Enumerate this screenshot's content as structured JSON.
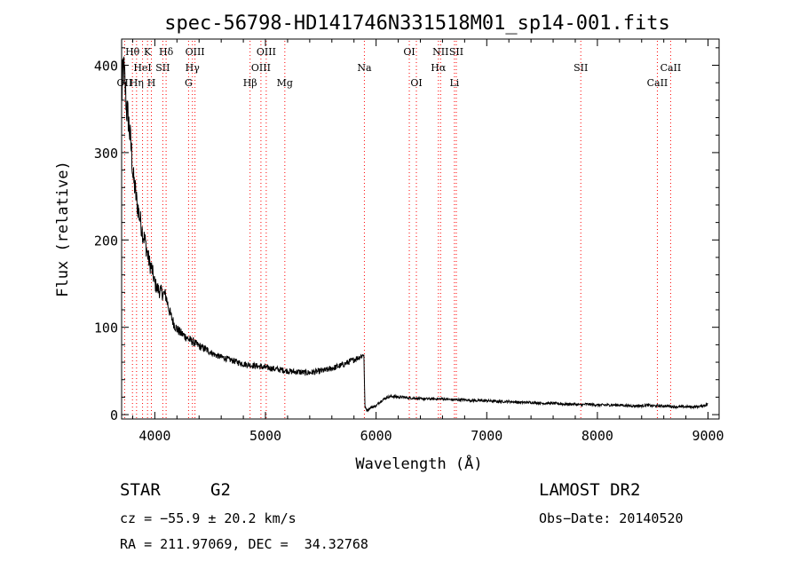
{
  "chart_data": {
    "type": "line",
    "title": "spec-56798-HD141746N331518M01_sp14-001.fits",
    "xlabel": "Wavelength (Å)",
    "ylabel": "Flux (relative)",
    "xlim": [
      3700,
      9100
    ],
    "ylim": [
      -5,
      430
    ],
    "xticks": [
      4000,
      5000,
      6000,
      7000,
      8000,
      9000
    ],
    "yticks": [
      0,
      100,
      200,
      300,
      400
    ],
    "grid": false,
    "line_color": "#000000",
    "marker_color": "#ff0000",
    "series": [
      {
        "x": [
          3700,
          3715,
          3730,
          3745,
          3760,
          3775,
          3790,
          3805,
          3820,
          3835,
          3850,
          3865,
          3880,
          3895,
          3910,
          3925,
          3940,
          3955,
          3970,
          3985,
          4000,
          4020,
          4040,
          4060,
          4080,
          4100,
          4120,
          4140,
          4160,
          4180,
          4200,
          4230,
          4260,
          4290,
          4320,
          4350,
          4380,
          4410,
          4440,
          4470,
          4500,
          4550,
          4600,
          4650,
          4700,
          4750,
          4800,
          4850,
          4900,
          4950,
          5000,
          5050,
          5100,
          5150,
          5200,
          5250,
          5300,
          5350,
          5400,
          5450,
          5500,
          5550,
          5600,
          5650,
          5700,
          5750,
          5800,
          5850,
          5880,
          5890,
          5895,
          5900,
          5920,
          5950,
          6000,
          6030,
          6060,
          6100,
          6150,
          6200,
          6250,
          6300,
          6350,
          6400,
          6500,
          6600,
          6700,
          6800,
          6900,
          7000,
          7100,
          7200,
          7300,
          7400,
          7500,
          7600,
          7700,
          7800,
          7850,
          7900,
          8000,
          8100,
          8200,
          8300,
          8400,
          8450,
          8500,
          8600,
          8700,
          8800,
          8900,
          8950,
          9000
        ],
        "y": [
          360,
          400,
          380,
          350,
          340,
          320,
          300,
          270,
          260,
          245,
          235,
          225,
          215,
          205,
          200,
          190,
          180,
          172,
          168,
          160,
          150,
          145,
          142,
          140,
          138,
          136,
          125,
          115,
          108,
          102,
          98,
          94,
          91,
          88,
          85,
          83,
          80,
          78,
          76,
          74,
          72,
          68,
          66,
          64,
          62,
          60,
          58,
          57,
          56,
          55,
          54,
          53,
          52,
          51,
          50,
          49,
          49,
          48,
          48,
          49,
          50,
          51,
          53,
          55,
          57,
          60,
          63,
          66,
          68,
          70,
          30,
          8,
          5,
          8,
          10,
          14,
          17,
          20,
          21,
          20,
          20,
          19,
          19,
          18,
          18,
          18,
          17,
          17,
          16,
          16,
          15,
          15,
          14,
          14,
          13,
          13,
          12,
          12,
          11,
          12,
          11,
          11,
          11,
          10,
          10,
          11,
          10,
          10,
          9,
          9,
          9,
          10,
          12
        ]
      }
    ],
    "lines": [
      {
        "label": "OII",
        "wave": 3727,
        "row": 2
      },
      {
        "label": "Hθ",
        "wave": 3798,
        "row": 0
      },
      {
        "label": "Hη",
        "wave": 3835,
        "row": 2
      },
      {
        "label": "HeI",
        "wave": 3889,
        "row": 1
      },
      {
        "label": "K",
        "wave": 3934,
        "row": 0
      },
      {
        "label": "SII",
        "wave": 4072,
        "row": 1
      },
      {
        "label": "H",
        "wave": 3969,
        "row": 2
      },
      {
        "label": "Hδ",
        "wave": 4102,
        "row": 0
      },
      {
        "label": "OIII",
        "wave": 4363,
        "row": 0
      },
      {
        "label": "Hγ",
        "wave": 4340,
        "row": 1
      },
      {
        "label": "G",
        "wave": 4305,
        "row": 2
      },
      {
        "label": "OIII",
        "wave": 5007,
        "row": 0
      },
      {
        "label": "OIII",
        "wave": 4959,
        "row": 1
      },
      {
        "label": "Hβ",
        "wave": 4861,
        "row": 2
      },
      {
        "label": "Mg",
        "wave": 5175,
        "row": 2
      },
      {
        "label": "Na",
        "wave": 5894,
        "row": 1
      },
      {
        "label": "OI",
        "wave": 6300,
        "row": 0
      },
      {
        "label": "OI",
        "wave": 6364,
        "row": 2
      },
      {
        "label": "NII",
        "wave": 6583,
        "row": 0
      },
      {
        "label": "SII",
        "wave": 6725,
        "row": 0
      },
      {
        "label": "Hα",
        "wave": 6563,
        "row": 1
      },
      {
        "label": "Li",
        "wave": 6708,
        "row": 2
      },
      {
        "label": "SII",
        "wave": 7850,
        "row": 1
      },
      {
        "label": "CaII",
        "wave": 8662,
        "row": 1
      },
      {
        "label": "CaII",
        "wave": 8542,
        "row": 2
      }
    ]
  },
  "info": {
    "obj_class": "STAR",
    "subclass": "G2",
    "survey": "LAMOST DR2",
    "cz": "cz = −55.9 ± 20.2 km/s",
    "obs_date": "Obs−Date: 20140520",
    "coords": "RA = 211.97069, DEC =  34.32768"
  }
}
